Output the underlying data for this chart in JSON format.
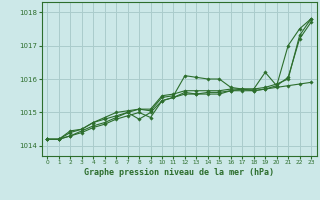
{
  "background_color": "#cce8e8",
  "grid_color": "#aacccc",
  "line_color": "#2d6e2d",
  "marker_color": "#2d6e2d",
  "xlabel": "Graphe pression niveau de la mer (hPa)",
  "ylim": [
    1013.7,
    1018.3
  ],
  "xlim": [
    -0.5,
    23.5
  ],
  "yticks": [
    1014,
    1015,
    1016,
    1017,
    1018
  ],
  "xticks": [
    0,
    1,
    2,
    3,
    4,
    5,
    6,
    7,
    8,
    9,
    10,
    11,
    12,
    13,
    14,
    15,
    16,
    17,
    18,
    19,
    20,
    21,
    22,
    23
  ],
  "series": [
    [
      1014.2,
      1014.2,
      1014.4,
      1014.5,
      1014.7,
      1014.8,
      1014.9,
      1015.0,
      1015.1,
      1015.05,
      1015.45,
      1015.5,
      1016.1,
      1016.05,
      1016.0,
      1016.0,
      1015.75,
      1015.7,
      1015.7,
      1016.2,
      1015.8,
      1017.0,
      1017.5,
      1017.8
    ],
    [
      1014.2,
      1014.2,
      1014.3,
      1014.4,
      1014.55,
      1014.65,
      1014.8,
      1014.9,
      1015.0,
      1014.85,
      1015.35,
      1015.45,
      1015.6,
      1015.55,
      1015.55,
      1015.55,
      1015.65,
      1015.65,
      1015.65,
      1015.7,
      1015.75,
      1015.8,
      1015.85,
      1015.9
    ],
    [
      1014.2,
      1014.2,
      1014.3,
      1014.45,
      1014.6,
      1014.7,
      1014.85,
      1015.0,
      1014.8,
      1015.0,
      1015.35,
      1015.45,
      1015.55,
      1015.55,
      1015.6,
      1015.6,
      1015.65,
      1015.7,
      1015.65,
      1015.7,
      1015.8,
      1016.05,
      1017.2,
      1017.7
    ],
    [
      1014.2,
      1014.2,
      1014.45,
      1014.5,
      1014.7,
      1014.85,
      1015.0,
      1015.05,
      1015.1,
      1015.1,
      1015.5,
      1015.55,
      1015.65,
      1015.65,
      1015.65,
      1015.65,
      1015.7,
      1015.7,
      1015.7,
      1015.75,
      1015.85,
      1016.0,
      1017.3,
      1017.8
    ]
  ]
}
